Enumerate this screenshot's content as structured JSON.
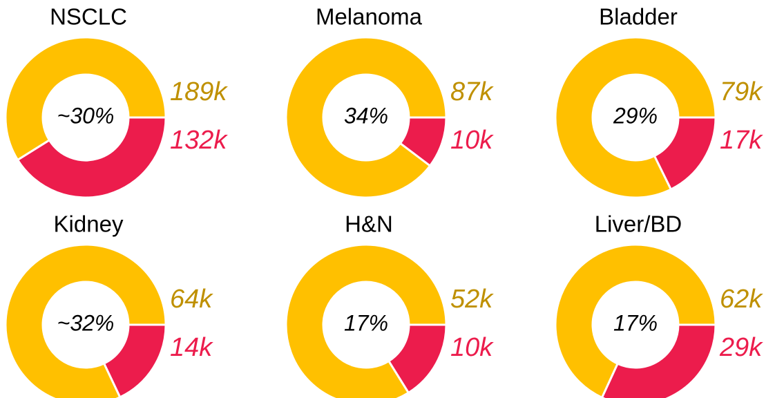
{
  "chart_data": [
    {
      "type": "donut",
      "title": "NSCLC",
      "center_label": "~30%",
      "values": [
        189,
        132
      ],
      "value_labels": [
        "189k",
        "132k"
      ],
      "colors": [
        "#FFC000",
        "#EC1C4C"
      ],
      "label_colors": [
        "#BF9000",
        "#EC1C4C"
      ]
    },
    {
      "type": "donut",
      "title": "Melanoma",
      "center_label": "34%",
      "values": [
        87,
        10
      ],
      "value_labels": [
        "87k",
        "10k"
      ],
      "colors": [
        "#FFC000",
        "#EC1C4C"
      ],
      "label_colors": [
        "#BF9000",
        "#EC1C4C"
      ]
    },
    {
      "type": "donut",
      "title": "Bladder",
      "center_label": "29%",
      "values": [
        79,
        17
      ],
      "value_labels": [
        "79k",
        "17k"
      ],
      "colors": [
        "#FFC000",
        "#EC1C4C"
      ],
      "label_colors": [
        "#BF9000",
        "#EC1C4C"
      ]
    },
    {
      "type": "donut",
      "title": "Kidney",
      "center_label": "~32%",
      "values": [
        64,
        14
      ],
      "value_labels": [
        "64k",
        "14k"
      ],
      "colors": [
        "#FFC000",
        "#EC1C4C"
      ],
      "label_colors": [
        "#BF9000",
        "#EC1C4C"
      ]
    },
    {
      "type": "donut",
      "title": "H&N",
      "center_label": "17%",
      "values": [
        52,
        10
      ],
      "value_labels": [
        "52k",
        "10k"
      ],
      "colors": [
        "#FFC000",
        "#EC1C4C"
      ],
      "label_colors": [
        "#BF9000",
        "#EC1C4C"
      ]
    },
    {
      "type": "donut",
      "title": "Liver/BD",
      "center_label": "17%",
      "values": [
        62,
        29
      ],
      "value_labels": [
        "62k",
        "29k"
      ],
      "colors": [
        "#FFC000",
        "#EC1C4C"
      ],
      "label_colors": [
        "#BF9000",
        "#EC1C4C"
      ]
    }
  ]
}
